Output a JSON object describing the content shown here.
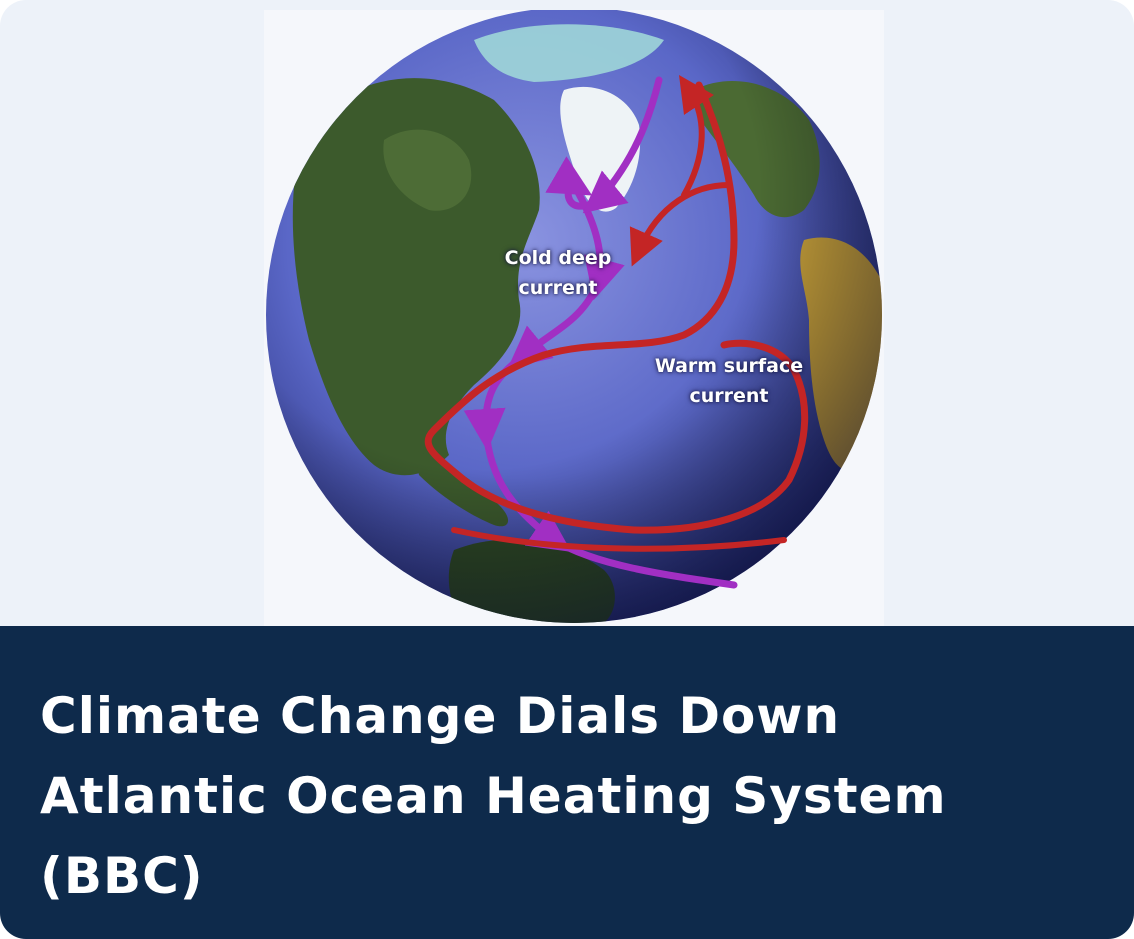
{
  "card": {
    "image": {
      "labels": {
        "cold": [
          "Cold deep",
          "current"
        ],
        "warm": [
          "Warm surface",
          "current"
        ]
      },
      "colors": {
        "ocean": "#5a67c7",
        "warm_current": "#c42525",
        "cold_current": "#a12fc3"
      }
    },
    "caption": {
      "lines": [
        "Climate Change Dials Down",
        "Atlantic Ocean Heating System",
        "(BBC)"
      ],
      "background": "#0e2a4b",
      "text_color": "#ffffff"
    }
  }
}
